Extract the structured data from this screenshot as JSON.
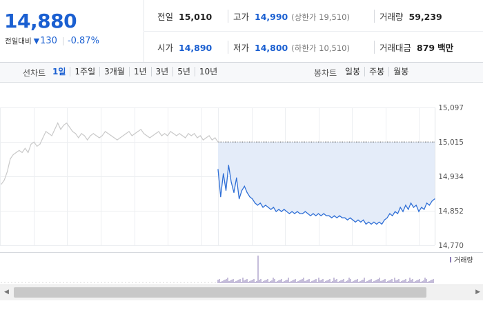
{
  "quote": {
    "price": "14,880",
    "change_label": "전일대비",
    "change_arrow": "▼",
    "change_value": "130",
    "change_pct": "-0.87%",
    "prev_close_label": "전일",
    "prev_close": "15,010",
    "high_label": "고가",
    "high": "14,990",
    "upper_limit_label": "상한가",
    "upper_limit": "19,510",
    "volume_label": "거래량",
    "volume": "59,239",
    "open_label": "시가",
    "open": "14,890",
    "low_label": "저가",
    "low": "14,800",
    "lower_limit_label": "하한가",
    "lower_limit": "10,510",
    "amount_label": "거래대금",
    "amount": "879",
    "amount_unit": "백만"
  },
  "period_bar": {
    "line_label": "선차트",
    "line_options": [
      "1일",
      "1주일",
      "3개월",
      "1년",
      "3년",
      "5년",
      "10년"
    ],
    "active": "1일",
    "candle_label": "봉차트",
    "candle_options": [
      "일봉",
      "주봉",
      "월봉"
    ]
  },
  "colors": {
    "accent": "#1a5fd1",
    "today_line": "#2f6fd6",
    "prev_line": "#c9c9c9",
    "area_fill": "#e4ecf9",
    "volume_bar": "#8b7bb5"
  },
  "icons": {
    "arrow_down": "triangle-down-icon",
    "scroll_left": "chevron-left-icon",
    "scroll_right": "chevron-right-icon"
  },
  "chart_data": {
    "type": "line",
    "y_ticks": [
      "15,097",
      "15,015",
      "14,934",
      "14,852",
      "14,770"
    ],
    "ylim": [
      14770,
      15097
    ],
    "reference_line": 15015,
    "volume_legend": "거래량",
    "grid": true,
    "series": [
      {
        "values": [
          14915,
          14925,
          14945,
          14975,
          14985,
          14990,
          14995,
          14990,
          15000,
          14990,
          15010,
          15015,
          15005,
          15010,
          15025,
          15040,
          15035,
          15030,
          15045,
          15060,
          15045,
          15055,
          15060,
          15050,
          15040,
          15035,
          15025,
          15035,
          15030,
          15020,
          15030,
          15035,
          15030,
          15025,
          15030,
          15040,
          15035,
          15030,
          15025,
          15020,
          15025,
          15030,
          15035,
          15040,
          15030,
          15035,
          15040,
          15045,
          15035,
          15030,
          15025,
          15030,
          15035,
          15040,
          15030,
          15035,
          15030,
          15040,
          15035,
          15030,
          15035,
          15030,
          15025,
          15035,
          15030,
          15035,
          15025,
          15030,
          15020,
          15025,
          15030,
          15020,
          15025,
          15015
        ]
      },
      {
        "values": [
          14950,
          14885,
          14940,
          14900,
          14960,
          14920,
          14895,
          14930,
          14880,
          14900,
          14910,
          14895,
          14885,
          14880,
          14870,
          14865,
          14870,
          14860,
          14865,
          14860,
          14855,
          14860,
          14850,
          14855,
          14850,
          14855,
          14850,
          14845,
          14850,
          14845,
          14850,
          14845,
          14845,
          14850,
          14845,
          14840,
          14845,
          14840,
          14845,
          14840,
          14845,
          14840,
          14840,
          14835,
          14840,
          14835,
          14840,
          14835,
          14835,
          14830,
          14835,
          14830,
          14825,
          14830,
          14825,
          14830,
          14820,
          14825,
          14820,
          14825,
          14820,
          14825,
          14820,
          14830,
          14835,
          14845,
          14840,
          14850,
          14845,
          14860,
          14850,
          14865,
          14855,
          14870,
          14860,
          14865,
          14850,
          14860,
          14855,
          14870,
          14865,
          14875,
          14880
        ]
      }
    ]
  }
}
